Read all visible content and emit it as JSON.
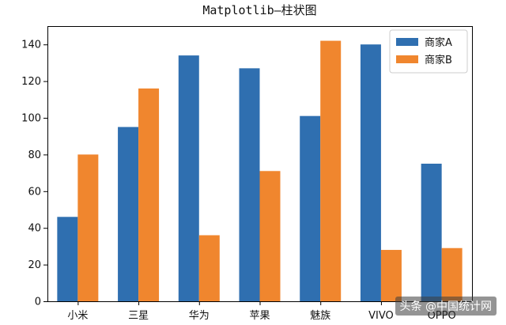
{
  "chart_data": {
    "type": "bar",
    "title": "Matplotlib—柱状图",
    "xlabel": "",
    "ylabel": "",
    "categories": [
      "小米",
      "三星",
      "华为",
      "苹果",
      "魅族",
      "VIVO",
      "OPPO"
    ],
    "series": [
      {
        "name": "商家A",
        "color": "#2f6fb0",
        "values": [
          46,
          95,
          134,
          127,
          101,
          140,
          75
        ]
      },
      {
        "name": "商家B",
        "color": "#f0862e",
        "values": [
          80,
          116,
          36,
          71,
          142,
          28,
          29
        ]
      }
    ],
    "ylim": [
      0,
      150
    ],
    "yticks": [
      0,
      20,
      40,
      60,
      80,
      100,
      120,
      140
    ],
    "grid": false,
    "legend_position": "top-right"
  },
  "watermark": "头条 @中国统计网"
}
